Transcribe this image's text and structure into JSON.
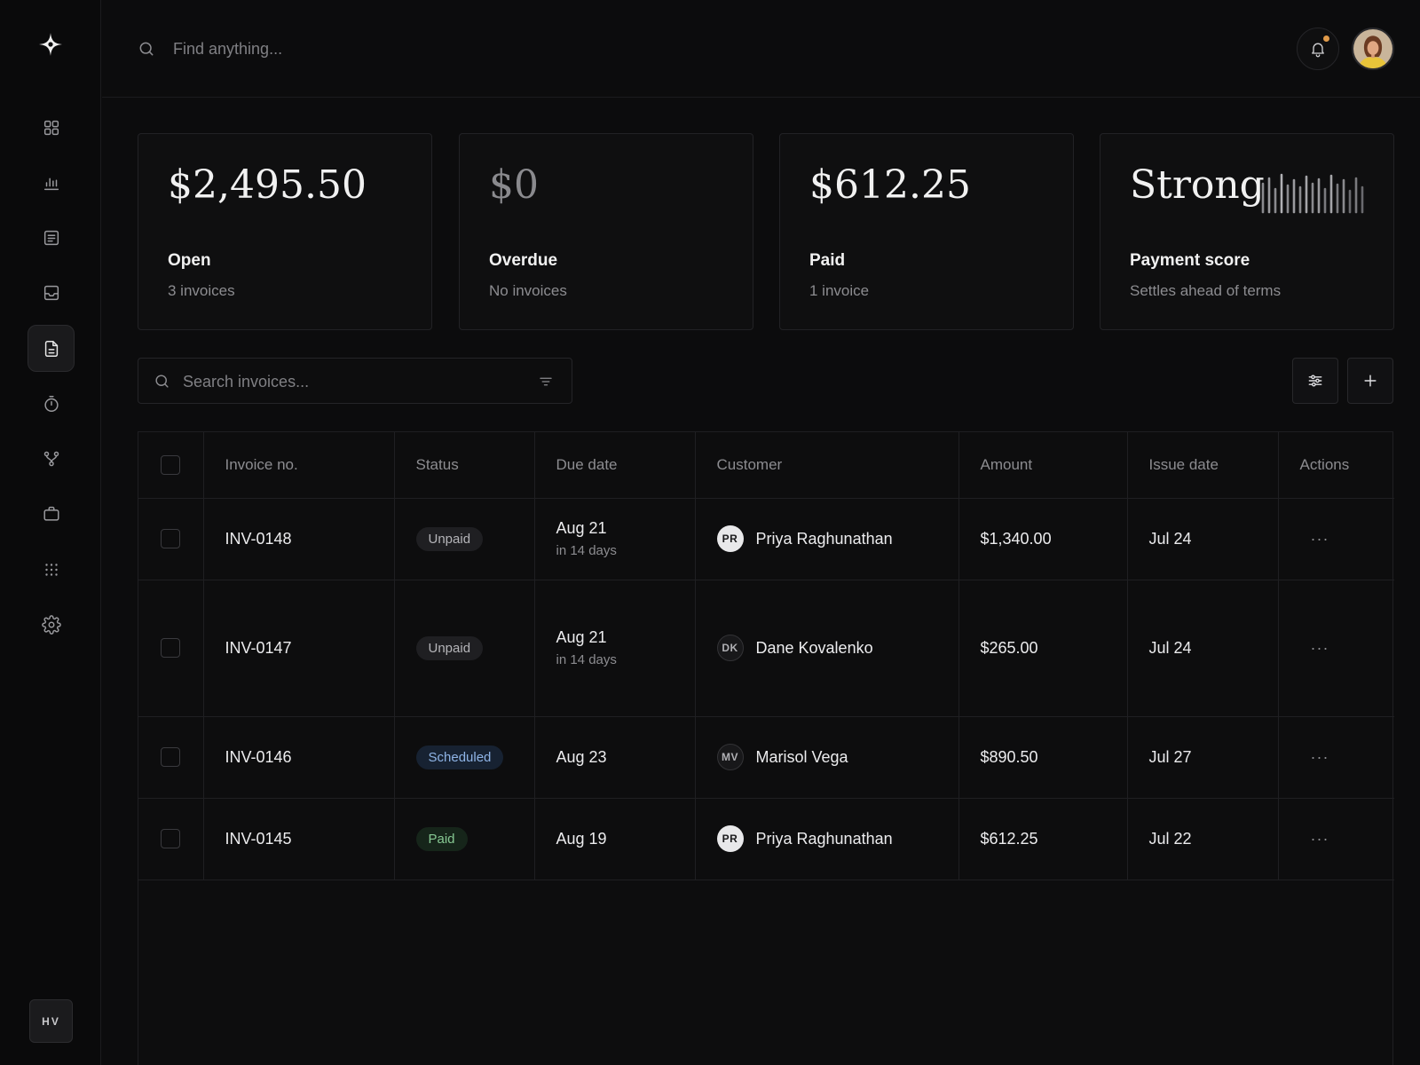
{
  "sidebar": {
    "logo": "sparkle-logo",
    "items": [
      {
        "name": "dashboard",
        "icon": "grid-icon"
      },
      {
        "name": "analytics",
        "icon": "bar-chart-icon"
      },
      {
        "name": "documents",
        "icon": "list-doc-icon"
      },
      {
        "name": "inbox",
        "icon": "inbox-icon"
      },
      {
        "name": "invoices",
        "icon": "file-icon",
        "active": true
      },
      {
        "name": "time-tracking",
        "icon": "timer-icon"
      },
      {
        "name": "workflows",
        "icon": "branch-icon"
      },
      {
        "name": "projects",
        "icon": "briefcase-icon"
      },
      {
        "name": "apps",
        "icon": "dots-grid-icon"
      },
      {
        "name": "settings",
        "icon": "gear-icon"
      }
    ],
    "user_initials": "HV"
  },
  "topbar": {
    "search_placeholder": "Find anything...",
    "notification_dot_color": "#e09a4a"
  },
  "stats": [
    {
      "value": "$2,495.50",
      "label": "Open",
      "sub": "3 invoices"
    },
    {
      "value": "$0",
      "label": "Overdue",
      "sub": "No invoices"
    },
    {
      "value": "$612.25",
      "label": "Paid",
      "sub": "1 invoice"
    },
    {
      "value": "Strong",
      "label": "Payment score",
      "sub": "Settles ahead of terms"
    }
  ],
  "toolbar": {
    "search_placeholder": "Search invoices..."
  },
  "table": {
    "columns": [
      "Invoice no.",
      "Status",
      "Due date",
      "Customer",
      "Amount",
      "Issue date",
      "Actions"
    ],
    "rows": [
      {
        "invoice": "INV-0148",
        "status": "Unpaid",
        "status_kind": "unpaid",
        "due": "Aug 21",
        "due_sub": "in 14 days",
        "initials": "PR",
        "avatar_style": "light",
        "customer": "Priya Raghunathan",
        "amount": "$1,340.00",
        "issued": "Jul 24",
        "actions": "···"
      },
      {
        "invoice": "INV-0147",
        "status": "Unpaid",
        "status_kind": "unpaid",
        "due": "Aug 21",
        "due_sub": "in 14 days",
        "initials": "DK",
        "avatar_style": "dark",
        "customer": "Dane Kovalenko",
        "amount": "$265.00",
        "issued": "Jul 24",
        "actions": "···"
      },
      {
        "invoice": "INV-0146",
        "status": "Scheduled",
        "status_kind": "scheduled",
        "due": "Aug 23",
        "due_sub": "",
        "initials": "MV",
        "avatar_style": "dark",
        "customer": "Marisol Vega",
        "amount": "$890.50",
        "issued": "Jul 27",
        "actions": "···"
      },
      {
        "invoice": "INV-0145",
        "status": "Paid",
        "status_kind": "paid",
        "due": "Aug 19",
        "due_sub": "",
        "initials": "PR",
        "avatar_style": "light",
        "customer": "Priya Raghunathan",
        "amount": "$612.25",
        "issued": "Jul 22",
        "actions": "···"
      }
    ]
  }
}
